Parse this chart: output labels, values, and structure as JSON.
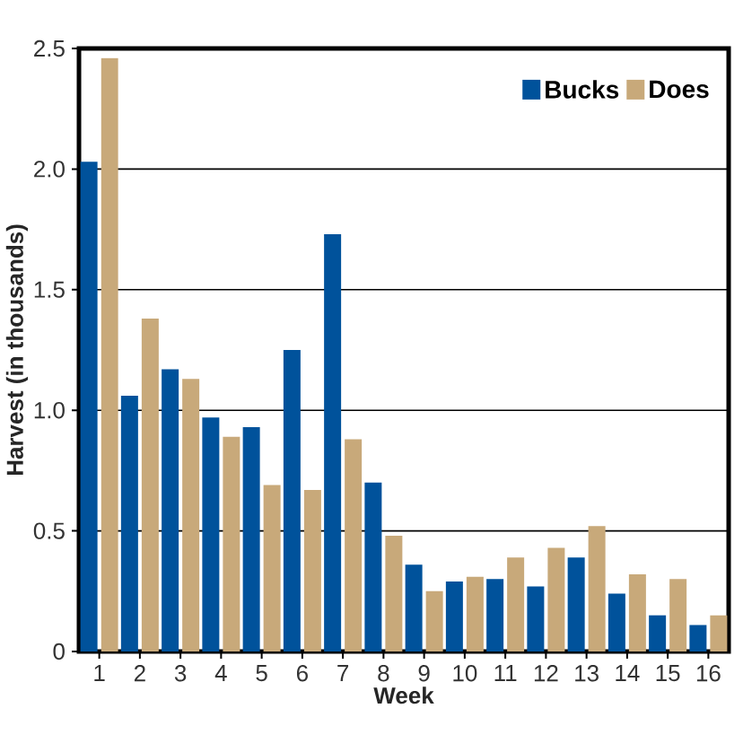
{
  "chart_data": {
    "type": "bar",
    "xlabel": "Week",
    "ylabel": "Harvest (in thousands)",
    "categories": [
      "1",
      "2",
      "3",
      "4",
      "5",
      "6",
      "7",
      "8",
      "9",
      "10",
      "11",
      "12",
      "13",
      "14",
      "15",
      "16"
    ],
    "series": [
      {
        "name": "Bucks",
        "color": "#00529b",
        "values": [
          2.03,
          1.06,
          1.17,
          0.97,
          0.93,
          1.25,
          1.73,
          0.7,
          0.36,
          0.29,
          0.3,
          0.27,
          0.39,
          0.24,
          0.15,
          0.11
        ]
      },
      {
        "name": "Does",
        "color": "#c8a97a",
        "values": [
          2.46,
          1.38,
          1.13,
          0.89,
          0.69,
          0.67,
          0.88,
          0.48,
          0.25,
          0.31,
          0.39,
          0.43,
          0.52,
          0.32,
          0.3,
          0.15
        ]
      }
    ],
    "ylim": [
      0,
      2.5
    ],
    "yticks": [
      0,
      {
        "value": 0.5,
        "label": "0.5"
      },
      {
        "value": 1,
        "label": "1.0"
      },
      {
        "value": 1.5,
        "label": "1.5"
      },
      {
        "value": 2,
        "label": "2.0"
      },
      {
        "value": 2.5,
        "label": "2.5"
      }
    ],
    "grid": "y",
    "legend": "top right"
  }
}
